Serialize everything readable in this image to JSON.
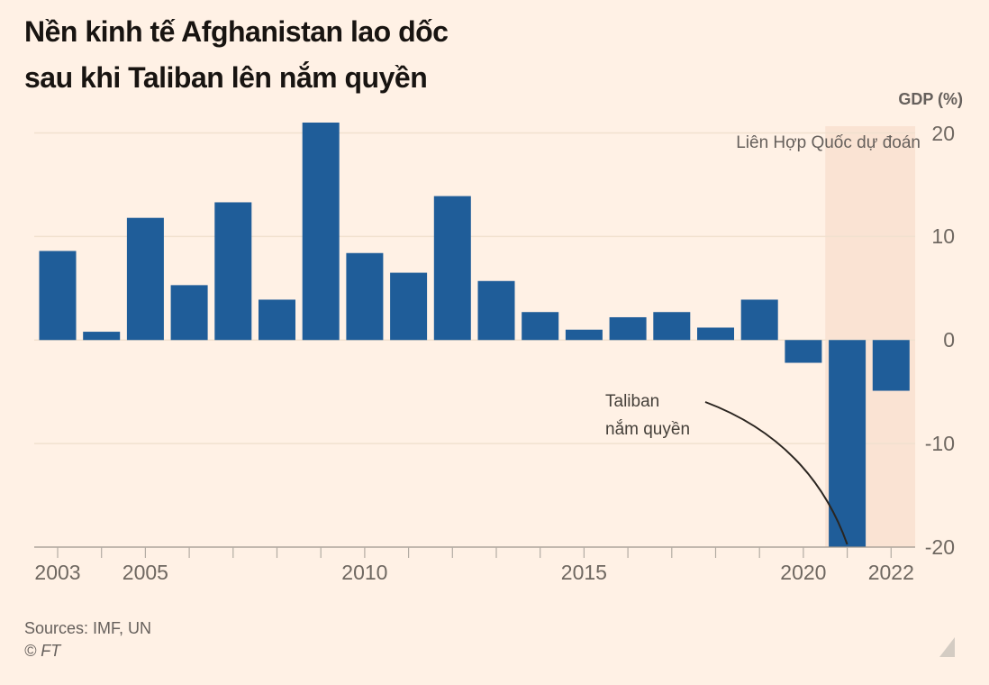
{
  "chart_data": {
    "type": "bar",
    "title_lines": [
      "Nền kinh tế Afghanistan lao dốc",
      "sau khi Taliban lên nắm quyền"
    ],
    "ylabel": "GDP (%)",
    "categories": [
      2003,
      2004,
      2005,
      2006,
      2007,
      2008,
      2009,
      2010,
      2011,
      2012,
      2013,
      2014,
      2015,
      2016,
      2017,
      2018,
      2019,
      2020,
      2021,
      2022
    ],
    "values": [
      8.6,
      0.8,
      11.8,
      5.3,
      13.3,
      3.9,
      21.0,
      8.4,
      6.5,
      13.9,
      5.7,
      2.7,
      1.0,
      2.2,
      2.7,
      1.2,
      3.9,
      -2.2,
      -20.0,
      -4.9
    ],
    "ylim": [
      -20,
      21.5
    ],
    "yticks": [
      20,
      10,
      0,
      -10,
      -20
    ],
    "xtick_labels": [
      "2003",
      "2005",
      "2010",
      "2015",
      "2020",
      "2022"
    ],
    "grid": true,
    "legend": "none",
    "forecast_band": {
      "label": "Liên Hợp Quốc dự đoán",
      "from_year": 2020.5,
      "to_year": 2022.55
    },
    "annotation": {
      "line1": "Taliban",
      "line2": "nắm quyền",
      "points_to_year": 2021
    },
    "colors": {
      "background": "#fff1e5",
      "bar": "#1f5d99",
      "forecast_band": "#fae3d3",
      "grid": "#f1e1cf",
      "axis": "#9d968e",
      "tick": "#b3aca3",
      "tick_text": "#6f6861",
      "title_text": "#181411",
      "label_text": "#66605c",
      "annotation_text": "#45403a",
      "annotation_line": "#2a2520",
      "resize_handle": "#cdc6bd"
    }
  },
  "footer": {
    "sources": "Sources: IMF, UN",
    "copyright": "© FT"
  }
}
